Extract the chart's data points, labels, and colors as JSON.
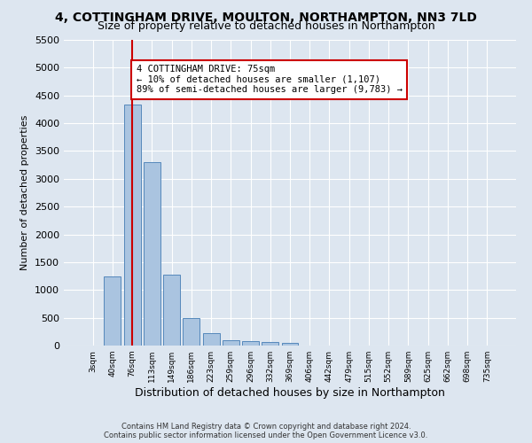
{
  "title": "4, COTTINGHAM DRIVE, MOULTON, NORTHAMPTON, NN3 7LD",
  "subtitle": "Size of property relative to detached houses in Northampton",
  "xlabel": "Distribution of detached houses by size in Northampton",
  "ylabel": "Number of detached properties",
  "footer_line1": "Contains HM Land Registry data © Crown copyright and database right 2024.",
  "footer_line2": "Contains public sector information licensed under the Open Government Licence v3.0.",
  "bar_labels": [
    "3sqm",
    "40sqm",
    "76sqm",
    "113sqm",
    "149sqm",
    "186sqm",
    "223sqm",
    "259sqm",
    "296sqm",
    "332sqm",
    "369sqm",
    "406sqm",
    "442sqm",
    "479sqm",
    "515sqm",
    "552sqm",
    "589sqm",
    "625sqm",
    "662sqm",
    "698sqm",
    "735sqm"
  ],
  "bar_values": [
    0,
    1250,
    4330,
    3300,
    1280,
    490,
    220,
    95,
    85,
    60,
    55,
    0,
    0,
    0,
    0,
    0,
    0,
    0,
    0,
    0,
    0
  ],
  "bar_color": "#aac4e0",
  "bar_edge_color": "#5588bb",
  "vline_x": 2,
  "annotation_text_line1": "4 COTTINGHAM DRIVE: 75sqm",
  "annotation_text_line2": "← 10% of detached houses are smaller (1,107)",
  "annotation_text_line3": "89% of semi-detached houses are larger (9,783) →",
  "annotation_box_color": "#ffffff",
  "annotation_box_edge": "#cc0000",
  "vline_color": "#cc0000",
  "ylim": [
    0,
    5500
  ],
  "yticks": [
    0,
    500,
    1000,
    1500,
    2000,
    2500,
    3000,
    3500,
    4000,
    4500,
    5000,
    5500
  ],
  "bg_color": "#dde6f0",
  "plot_bg_color": "#dde6f0",
  "grid_color": "#ffffff",
  "title_fontsize": 10,
  "subtitle_fontsize": 9,
  "ylabel_fontsize": 8,
  "xlabel_fontsize": 9
}
